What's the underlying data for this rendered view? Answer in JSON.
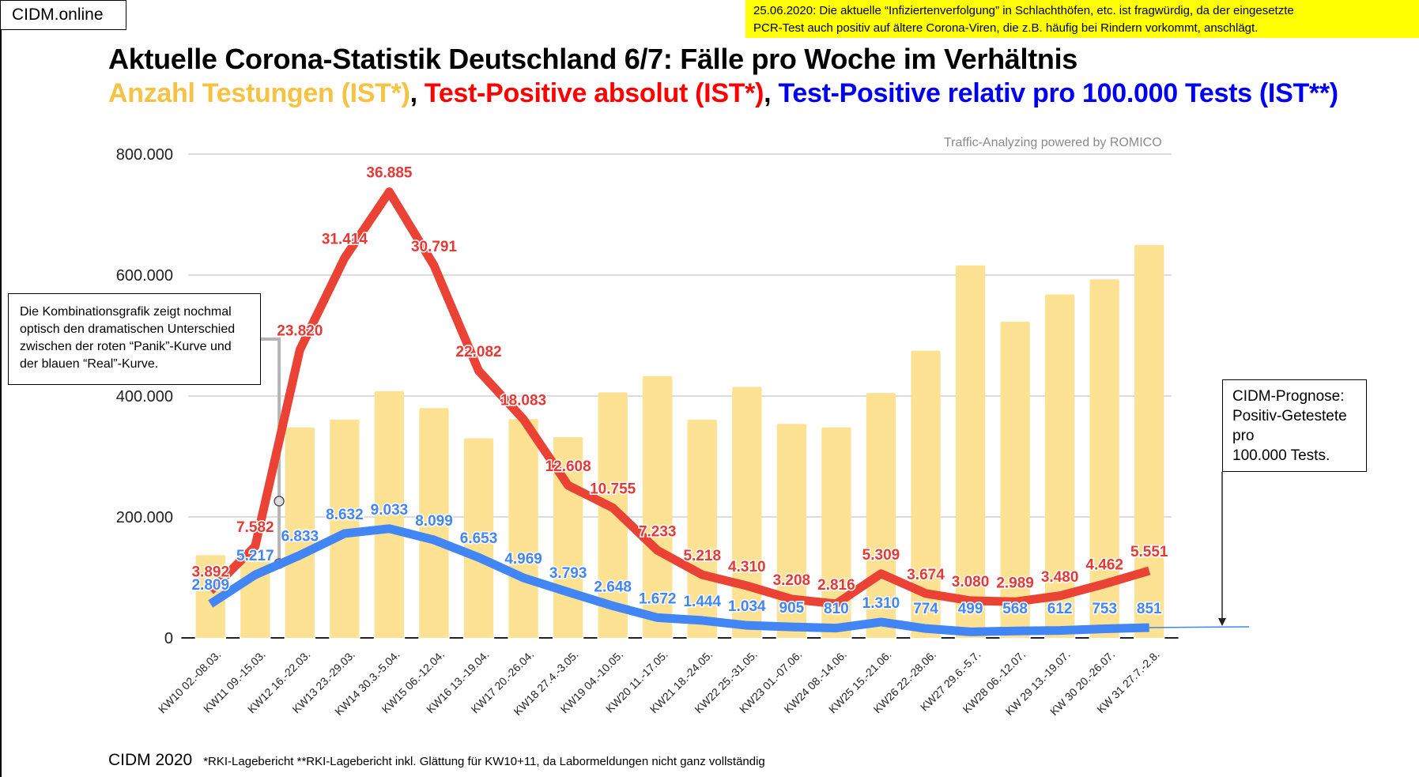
{
  "brand": "CIDM.online",
  "notice": {
    "line1": "25.06.2020: Die aktuelle “Infiziertenverfolgung” in Schlachthöfen, etc. ist fragwürdig, da der eingesetzte",
    "line2": "PCR-Test auch positiv auf ältere Corona-Viren, die z.B. häufig bei Rindern vorkommt, anschlägt."
  },
  "title": "Aktuelle Corona-Statistik Deutschland 6/7: Fälle pro Woche im Verhältnis",
  "subtitle": {
    "part1": "Anzahl Testungen (IST*)",
    "sep1": ", ",
    "part2": "Test-Positive absolut (IST*)",
    "sep2": ", ",
    "part3": "Test-Positive relativ pro 100.000 Tests (IST**)"
  },
  "credit": "Traffic-Analyzing powered by ROMICO",
  "annotation_left": {
    "lines": [
      "Die Kombinationsgrafik zeigt nochmal",
      "optisch den dramatischen Unterschied",
      "zwischen der roten “Panik”-Kurve und",
      "der blauen “Real”-Kurve."
    ]
  },
  "annotation_right": {
    "lines": [
      "CIDM-Prognose:",
      "Positiv-Getestete",
      "pro",
      "100.000 Tests."
    ]
  },
  "footer": {
    "brand": "CIDM 2020",
    "notes": "*RKI-Lagebericht   **RKI-Lagebericht inkl. Glättung für KW10+11, da Labormeldungen nicht ganz vollständig"
  },
  "colors": {
    "bars": "#fde293",
    "red_line": "#ea4335",
    "blue_line": "#4285f4",
    "grid": "#d0d0d0",
    "title_yellow": "#f5c242",
    "title_red": "#ff0000",
    "title_blue": "#0000ee",
    "notice_bg": "#ffff00"
  },
  "chart_data": {
    "type": "bar",
    "title": "Aktuelle Corona-Statistik Deutschland 6/7: Fälle pro Woche im Verhältnis",
    "xlabel": "",
    "ylabel": "",
    "ylim": [
      0,
      800000
    ],
    "yticks": [
      "0",
      "200.000",
      "400.000",
      "600.000",
      "800.000"
    ],
    "ytick_values": [
      0,
      200000,
      400000,
      600000,
      800000
    ],
    "grid": true,
    "legend": "none",
    "categories": [
      "KW10 02.-08.03.",
      "KW11 09.-15.03.",
      "KW12 16.-22.03.",
      "KW13 23.-29.03.",
      "KW14 30.3.-5.04.",
      "KW15 06.-12.04.",
      "KW16 13.-19.04.",
      "KW17 20.-26.04.",
      "KW18 27.4.-3.05.",
      "KW19 04.-10.05.",
      "KW20 11.-17.05.",
      "KW21 18.-24.05.",
      "KW22 25.-31.05.",
      "KW23 01.-07.06.",
      "KW24 08.-14.06.",
      "KW25 15.-21.06.",
      "KW26 22.-28.06.",
      "KW27 29.6.-5.7.",
      "KW28 06.-12.07.",
      "KW 29 13.-19.07.",
      "KW 30 20.-26.07.",
      "KW 31 27.7.-2.8."
    ],
    "series": [
      {
        "name": "Anzahl Testungen (IST*)",
        "type": "bar",
        "values": [
          137000,
          128000,
          348000,
          361000,
          408000,
          380000,
          330000,
          362000,
          332000,
          406000,
          433000,
          361000,
          415000,
          354000,
          348000,
          405000,
          475000,
          616000,
          523000,
          568000,
          593000,
          650000
        ]
      },
      {
        "name": "Test-Positive absolut (IST*)",
        "type": "line",
        "values": [
          3892,
          7582,
          23820,
          31414,
          36885,
          30791,
          22082,
          18083,
          12608,
          10755,
          7233,
          5218,
          4310,
          3208,
          2816,
          5309,
          3674,
          3080,
          2989,
          3480,
          4462,
          5551
        ],
        "labels": [
          "3.892",
          "7.582",
          "23.820",
          "31.414",
          "36.885",
          "30.791",
          "22.082",
          "18.083",
          "12.608",
          "10.755",
          "7.233",
          "5.218",
          "4.310",
          "3.208",
          "2.816",
          "5.309",
          "3.674",
          "3.080",
          "2.989",
          "3.480",
          "4.462",
          "5.551"
        ],
        "display_scale": 20
      },
      {
        "name": "Test-Positive relativ pro 100.000 Tests (IST**)",
        "type": "line",
        "values": [
          2809,
          5217,
          6833,
          8632,
          9033,
          8099,
          6653,
          4969,
          3793,
          2648,
          1672,
          1444,
          1034,
          905,
          810,
          1310,
          774,
          499,
          568,
          612,
          753,
          851
        ],
        "labels": [
          "2.809",
          "5.217",
          "6.833",
          "8.632",
          "9.033",
          "8.099",
          "6.653",
          "4.969",
          "3.793",
          "2.648",
          "1.672",
          "1.444",
          "1.034",
          "905",
          "810",
          "1.310",
          "774",
          "499",
          "568",
          "612",
          "753",
          "851"
        ],
        "display_scale": 20
      }
    ]
  }
}
